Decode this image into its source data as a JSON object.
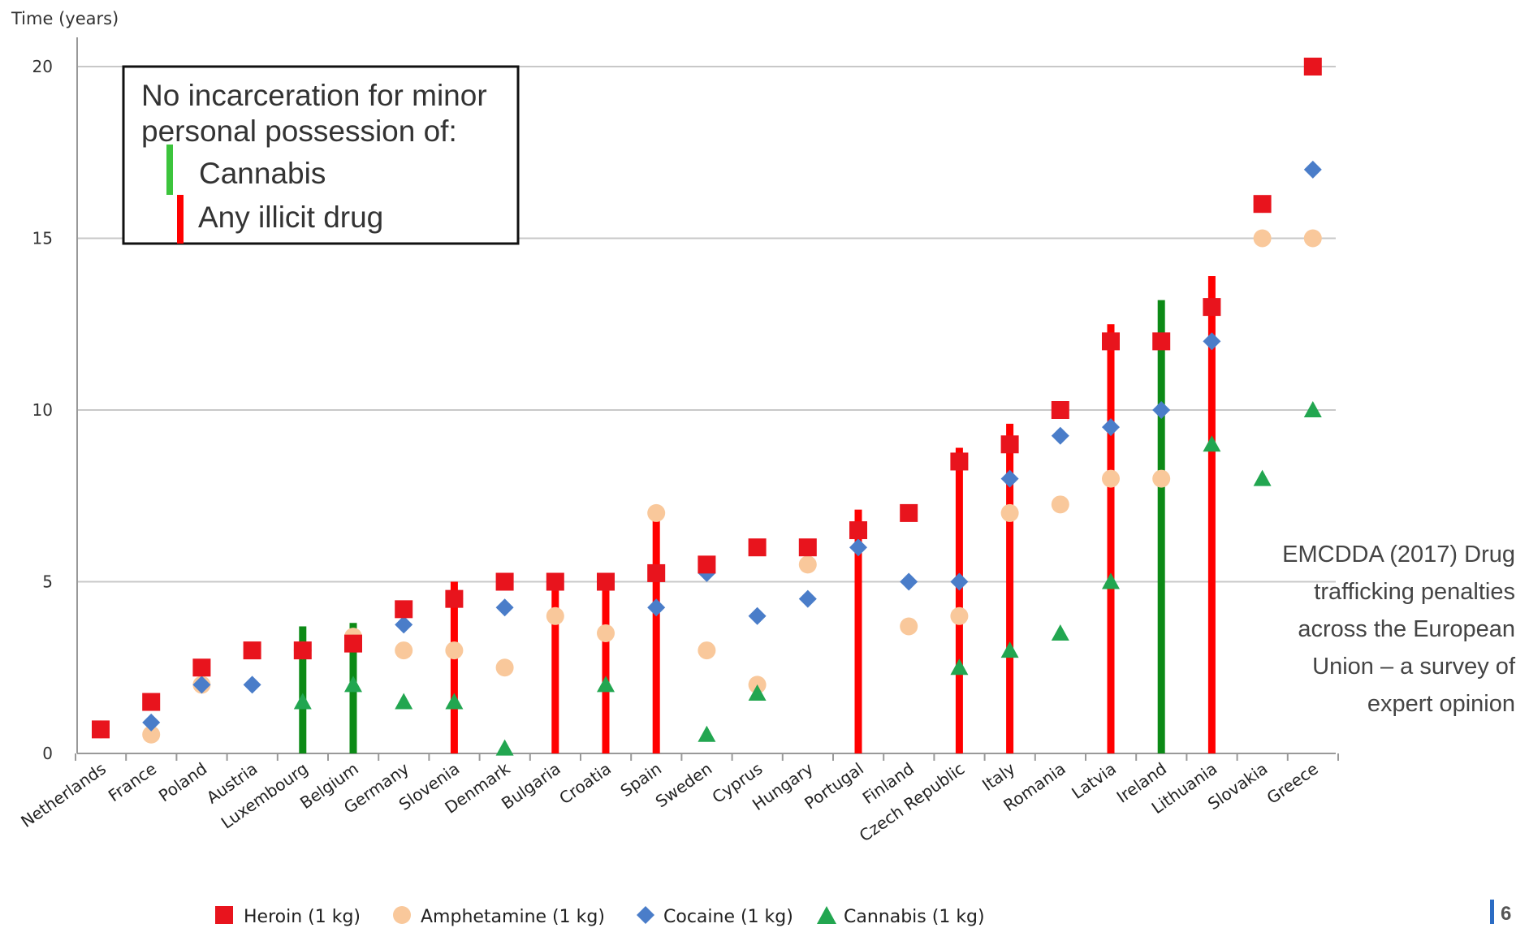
{
  "chart_data": {
    "type": "scatter",
    "ylabel": "Time (years)",
    "ylim": [
      0,
      20
    ],
    "yticks": [
      0,
      5,
      10,
      15,
      20
    ],
    "grid": true,
    "legend_position": "bottom",
    "categories": [
      "Netherlands",
      "France",
      "Poland",
      "Austria",
      "Luxembourg",
      "Belgium",
      "Germany",
      "Slovenia",
      "Denmark",
      "Bulgaria",
      "Croatia",
      "Spain",
      "Sweden",
      "Cyprus",
      "Hungary",
      "Portugal",
      "Finland",
      "Czech Republic",
      "Italy",
      "Romania",
      "Latvia",
      "Ireland",
      "Lithuania",
      "Slovakia",
      "Greece"
    ],
    "series": [
      {
        "name": "Heroin (1 kg)",
        "marker": "square",
        "color": "#e8141d",
        "values": [
          0.7,
          1.5,
          2.5,
          3,
          3,
          3.2,
          4.2,
          4.5,
          5,
          5,
          5,
          5.25,
          5.5,
          6,
          6,
          6.5,
          7,
          8.5,
          9,
          10,
          12,
          12,
          13,
          16,
          20
        ]
      },
      {
        "name": "Amphetamine (1 kg)",
        "marker": "circle",
        "color": "#f9c89b",
        "values": [
          0.7,
          0.55,
          2,
          null,
          3,
          3.4,
          3,
          3,
          2.5,
          4,
          3.5,
          7,
          3,
          2,
          5.5,
          null,
          3.7,
          4,
          7,
          7.25,
          8,
          8,
          null,
          15,
          15
        ]
      },
      {
        "name": "Cocaine (1 kg)",
        "marker": "diamond",
        "color": "#4a7dc9",
        "values": [
          0.7,
          0.9,
          2,
          2,
          3,
          3.2,
          3.75,
          4.5,
          4.25,
          5,
          5,
          4.25,
          5.25,
          4,
          4.5,
          6,
          5,
          5,
          8,
          9.25,
          9.5,
          10,
          12,
          16,
          17
        ]
      },
      {
        "name": "Cannabis (1 kg)",
        "marker": "triangle",
        "color": "#22a650",
        "values": [
          null,
          null,
          null,
          null,
          1.5,
          2,
          1.5,
          1.5,
          0.15,
          null,
          2,
          null,
          0.55,
          1.75,
          null,
          null,
          null,
          2.5,
          3,
          3.5,
          5,
          null,
          9,
          8,
          10
        ]
      }
    ],
    "vertical_markers": [
      {
        "category": "Luxembourg",
        "type": "cannabis",
        "top": 3.7
      },
      {
        "category": "Belgium",
        "type": "cannabis",
        "top": 3.8
      },
      {
        "category": "Slovenia",
        "type": "any",
        "top": 5
      },
      {
        "category": "Bulgaria",
        "type": "any",
        "top": 5
      },
      {
        "category": "Croatia",
        "type": "any",
        "top": 5
      },
      {
        "category": "Spain",
        "type": "any",
        "top": 7.1
      },
      {
        "category": "Portugal",
        "type": "any",
        "top": 7.1
      },
      {
        "category": "Czech Republic",
        "type": "any",
        "top": 8.9
      },
      {
        "category": "Italy",
        "type": "any",
        "top": 9.6
      },
      {
        "category": "Latvia",
        "type": "any",
        "top": 12.5
      },
      {
        "category": "Ireland",
        "type": "cannabis",
        "top": 13.2
      },
      {
        "category": "Lithuania",
        "type": "any",
        "top": 13.9
      }
    ]
  },
  "annotation_box": {
    "line1": "No incarceration for minor",
    "line2": "personal possession of:",
    "item_cannabis": "Cannabis",
    "item_any": "Any illicit drug"
  },
  "source_text": [
    "EMCDDA (2017) Drug",
    "trafficking penalties",
    "across the European",
    "Union – a survey of",
    "expert opinion"
  ],
  "page_number": "6",
  "colors": {
    "heroin": "#e8141d",
    "amphetamine": "#f9c89b",
    "cocaine": "#4a7dc9",
    "cannabis": "#22a650",
    "bar_any": "#ff0000",
    "bar_cannabis": "#0c8a16",
    "box_cannabis": "#3cc43c",
    "grid": "#c8c8c8",
    "page_bar": "#2b6cc4"
  }
}
